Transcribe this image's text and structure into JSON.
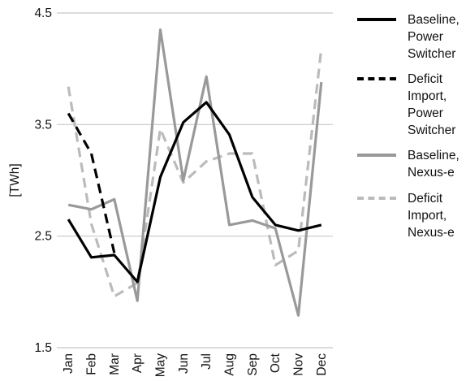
{
  "chart_data": {
    "type": "line",
    "ylabel": "[TWh]",
    "xlabel": "",
    "title": "",
    "ylim": [
      1.5,
      4.5
    ],
    "yticks": [
      "1.5",
      "2.5",
      "3.5",
      "4.5"
    ],
    "grid": "horizontal",
    "legend_position": "right",
    "categories": [
      "Jan",
      "Feb",
      "Mar",
      "Apr",
      "May",
      "Jun",
      "Jul",
      "Aug",
      "Sep",
      "Oct",
      "Nov",
      "Dec"
    ],
    "series": [
      {
        "name": "Baseline, Power Switcher",
        "color": "#000000",
        "dash": "solid",
        "values": [
          2.65,
          2.31,
          2.33,
          2.09,
          3.03,
          3.52,
          3.7,
          3.41,
          2.85,
          2.6,
          2.55,
          2.6
        ]
      },
      {
        "name": "Deficit Import, Power Switcher",
        "color": "#000000",
        "dash": "dashed",
        "values": [
          3.6,
          3.24,
          2.35,
          null,
          null,
          null,
          null,
          null,
          null,
          null,
          null,
          null
        ]
      },
      {
        "name": "Baseline, Nexus-e",
        "color": "#999999",
        "dash": "solid",
        "values": [
          2.78,
          2.74,
          2.83,
          1.92,
          4.35,
          3.0,
          3.93,
          2.6,
          2.64,
          2.57,
          1.79,
          3.88
        ]
      },
      {
        "name": "Deficit Import, Nexus-e",
        "color": "#bbbbbb",
        "dash": "dashed",
        "values": [
          3.84,
          2.61,
          1.96,
          2.08,
          3.46,
          2.98,
          3.17,
          3.24,
          3.24,
          2.24,
          2.37,
          4.18
        ]
      }
    ]
  },
  "legend": {
    "items": [
      {
        "lines": [
          "Baseline,",
          "Power",
          "Switcher"
        ],
        "color": "#000000",
        "dash": "solid"
      },
      {
        "lines": [
          "Deficit",
          "Import,",
          "Power",
          "Switcher"
        ],
        "color": "#000000",
        "dash": "dashed"
      },
      {
        "lines": [
          "Baseline,",
          "Nexus-e"
        ],
        "color": "#999999",
        "dash": "solid"
      },
      {
        "lines": [
          "Deficit",
          "Import,",
          "Nexus-e"
        ],
        "color": "#bbbbbb",
        "dash": "dashed"
      }
    ]
  }
}
